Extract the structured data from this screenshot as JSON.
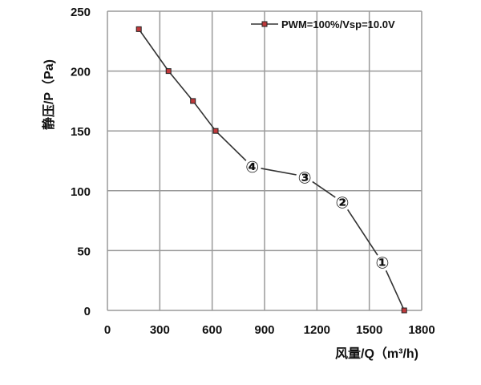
{
  "chart_data": {
    "type": "line",
    "title": "",
    "xlabel": "风量/Q（m³/h)",
    "ylabel": "静压/P（Pa)",
    "xlim": [
      0,
      1800
    ],
    "ylim": [
      0,
      250
    ],
    "xticks": [
      "0",
      "300",
      "600",
      "900",
      "1200",
      "1500",
      "1800"
    ],
    "yticks": [
      "0",
      "50",
      "100",
      "150",
      "200",
      "250"
    ],
    "grid": true,
    "legend_position": "top-right",
    "series": [
      {
        "name": "PWM=100%/Vsp=10.0V",
        "color": "#333333",
        "marker_color": "#c0393b",
        "x": [
          180,
          350,
          490,
          620,
          830,
          1130,
          1350,
          1575,
          1700
        ],
        "y": [
          235,
          200,
          175,
          150,
          120,
          112,
          90,
          40,
          0
        ],
        "markers": [
          true,
          true,
          true,
          true,
          false,
          false,
          false,
          false,
          true
        ]
      }
    ],
    "annotations": [
      {
        "text": "④",
        "x": 830,
        "y": 120
      },
      {
        "text": "③",
        "x": 1130,
        "y": 111
      },
      {
        "text": "②",
        "x": 1345,
        "y": 90
      },
      {
        "text": "①",
        "x": 1575,
        "y": 40
      }
    ]
  }
}
